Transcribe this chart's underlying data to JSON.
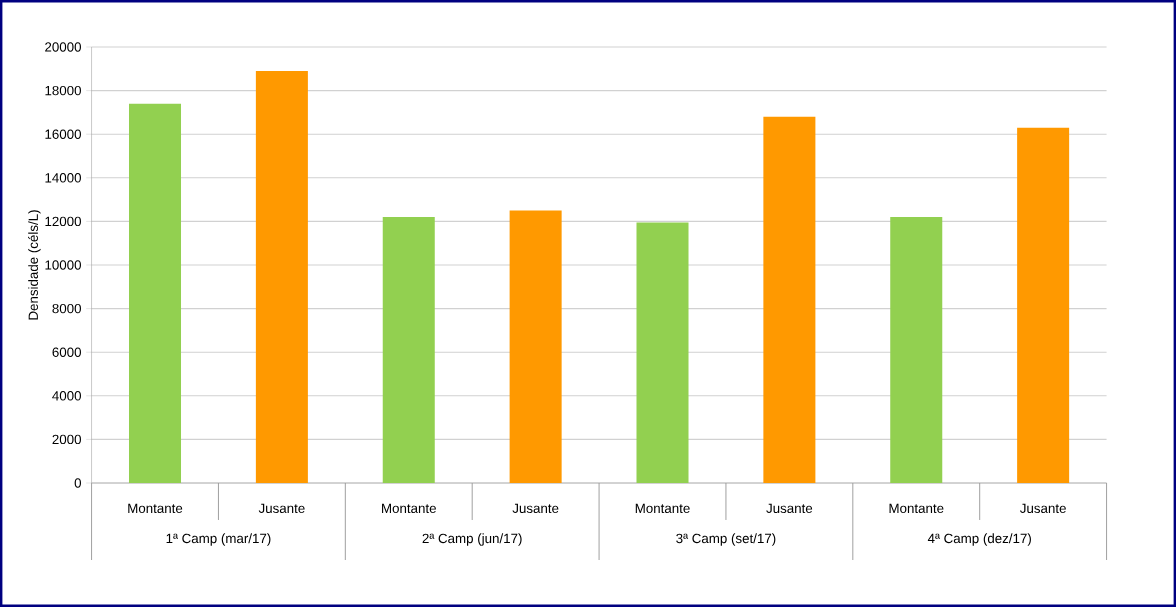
{
  "chart_data": {
    "type": "bar",
    "ylabel": "Densidade (céls/L)",
    "categories": [
      "Montante",
      "Jusante",
      "Montante",
      "Jusante",
      "Montante",
      "Jusante",
      "Montante",
      "Jusante"
    ],
    "values": [
      17400,
      18900,
      12200,
      12500,
      11950,
      16800,
      12200,
      16300
    ],
    "colors": [
      "#92d050",
      "#ff9900",
      "#92d050",
      "#ff9900",
      "#92d050",
      "#ff9900",
      "#92d050",
      "#ff9900"
    ],
    "ylim": [
      0,
      20000
    ],
    "yticks": [
      0,
      2000,
      4000,
      6000,
      8000,
      10000,
      12000,
      14000,
      16000,
      18000,
      20000
    ],
    "grid": "y",
    "annotations": [
      "1ª Camp (mar/17)",
      "2ª Camp (jun/17)",
      "3ª Camp (set/17)",
      "4ª Camp (dez/17)"
    ]
  }
}
